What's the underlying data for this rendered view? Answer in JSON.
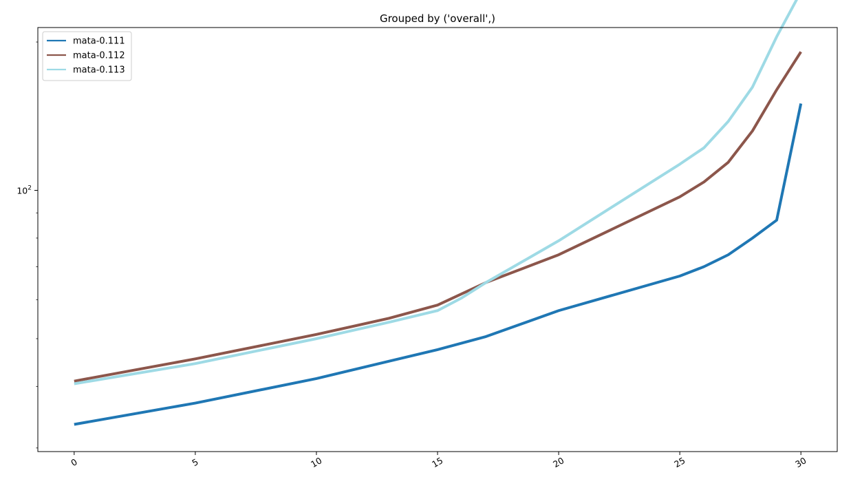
{
  "chart_data": {
    "type": "line",
    "title": "Grouped by ('overall',)",
    "xlabel": "",
    "ylabel": "",
    "yscale": "log",
    "xlim": [
      -1.5,
      31.5
    ],
    "ylim": [
      29.5,
      214
    ],
    "x_ticks": [
      0,
      5,
      10,
      15,
      20,
      25,
      30
    ],
    "x_tick_labels": [
      "0",
      "5",
      "10",
      "15",
      "20",
      "25",
      "30"
    ],
    "y_ticks": [
      100
    ],
    "y_tick_label_base": "10",
    "y_tick_label_exp": "2",
    "grid": false,
    "legend_position": "top-left",
    "series": [
      {
        "name": "mata-0.111",
        "color": "#1f77b4",
        "x": [
          0,
          5,
          10,
          13,
          15,
          17,
          20,
          25,
          26,
          27,
          28,
          29,
          30
        ],
        "y": [
          33.5,
          37,
          41.5,
          45,
          47.5,
          50.5,
          57,
          67,
          70,
          74,
          80,
          87,
          150
        ]
      },
      {
        "name": "mata-0.112",
        "color": "#8c564b",
        "x": [
          0,
          5,
          10,
          13,
          15,
          17,
          20,
          25,
          26,
          27,
          28,
          29,
          30
        ],
        "y": [
          41,
          45.5,
          51,
          55,
          58.5,
          65,
          74,
          97,
          104,
          114,
          132,
          160,
          191
        ]
      },
      {
        "name": "mata-0.113",
        "color": "#9edae5",
        "x": [
          0,
          5,
          10,
          13,
          15,
          16,
          17,
          20,
          25,
          26,
          27,
          28,
          29,
          30
        ],
        "y": [
          40.5,
          44.5,
          50,
          54,
          57,
          60.5,
          65,
          79,
          113,
          122,
          138,
          162,
          205,
          253
        ]
      }
    ]
  }
}
